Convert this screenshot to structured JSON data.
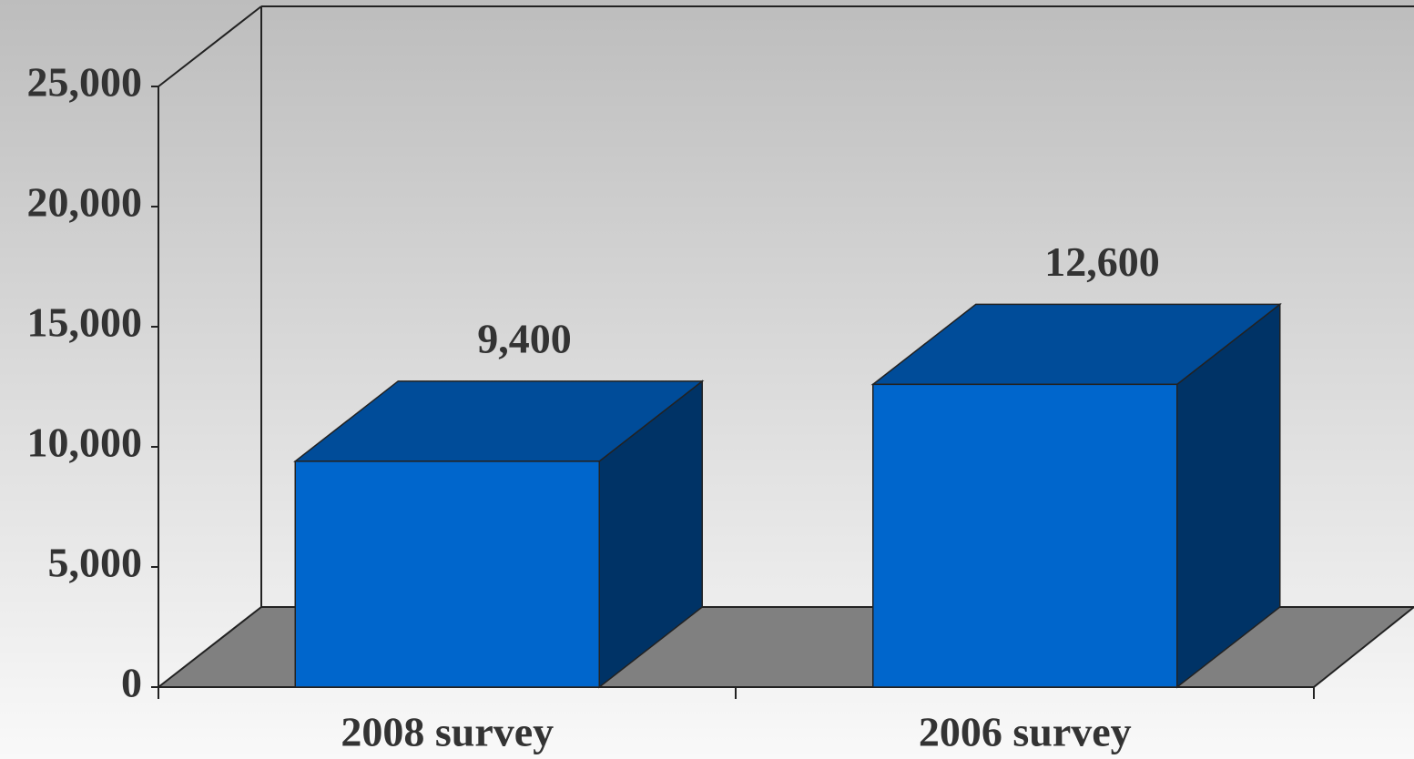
{
  "chart_data": {
    "type": "bar3d",
    "categories": [
      "2008 survey",
      "2006 survey"
    ],
    "values": [
      9400,
      12600
    ],
    "value_labels": [
      "9,400",
      "12,600"
    ],
    "colors": {
      "front": "#0066cc",
      "top": "#004c99",
      "side": "#003366",
      "floor": "#808080"
    },
    "ylim": [
      0,
      25000
    ],
    "yticks": [
      0,
      {
        "value": 5000,
        "label": "5,000"
      },
      {
        "value": 10000,
        "label": "10,000"
      },
      {
        "value": 15000,
        "label": "15,000"
      },
      {
        "value": 20000,
        "label": "20,000"
      },
      {
        "value": 25000,
        "label": "25,000"
      }
    ]
  }
}
